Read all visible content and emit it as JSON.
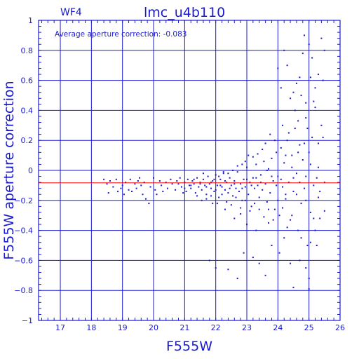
{
  "chart_data": {
    "type": "scatter",
    "corner_label": "WF4",
    "title": "lmc_u4b110",
    "annotation": "Average aperture correction: -0.083",
    "xlabel": "F555W",
    "ylabel": "F555W aperture correction",
    "xlim": [
      16.3,
      26
    ],
    "ylim": [
      -1,
      1
    ],
    "xticks": [
      17,
      18,
      19,
      20,
      21,
      22,
      23,
      24,
      25,
      26
    ],
    "yticks": [
      -1,
      -0.8,
      -0.6,
      -0.4,
      -0.2,
      0,
      0.2,
      0.4,
      0.6,
      0.8,
      1
    ],
    "xtick_labels": [
      "17",
      "18",
      "19",
      "20",
      "21",
      "22",
      "23",
      "24",
      "25",
      "26"
    ],
    "ytick_labels": [
      "−1",
      "−0.8",
      "−0.6",
      "−0.4",
      "−0.2",
      "0",
      "0.2",
      "0.4",
      "0.6",
      "0.8",
      "1"
    ],
    "grid": true,
    "reference_line": {
      "y": -0.083,
      "color": "#ff0000"
    },
    "colors": {
      "axis": "#1a1ad0",
      "points": "#1a1ad0",
      "line": "#ff0000",
      "background": "#ffffff"
    },
    "points": [
      [
        18.4,
        -0.06
      ],
      [
        18.5,
        -0.09
      ],
      [
        18.55,
        -0.15
      ],
      [
        18.6,
        -0.07
      ],
      [
        18.7,
        -0.11
      ],
      [
        18.8,
        -0.06
      ],
      [
        18.85,
        -0.14
      ],
      [
        19.0,
        -0.1
      ],
      [
        19.1,
        -0.08
      ],
      [
        19.2,
        -0.13
      ],
      [
        19.25,
        -0.06
      ],
      [
        19.4,
        -0.09
      ],
      [
        19.45,
        -0.12
      ],
      [
        19.5,
        -0.07
      ],
      [
        19.6,
        -0.1
      ],
      [
        19.65,
        -0.16
      ],
      [
        19.7,
        -0.08
      ],
      [
        19.75,
        -0.19
      ],
      [
        19.85,
        -0.22
      ],
      [
        19.9,
        -0.11
      ],
      [
        20.0,
        -0.05
      ],
      [
        20.05,
        -0.13
      ],
      [
        20.1,
        -0.16
      ],
      [
        20.2,
        -0.07
      ],
      [
        20.25,
        -0.1
      ],
      [
        20.4,
        -0.08
      ],
      [
        20.45,
        -0.12
      ],
      [
        20.55,
        -0.06
      ],
      [
        20.6,
        -0.09
      ],
      [
        20.7,
        -0.13
      ],
      [
        20.75,
        -0.07
      ],
      [
        20.85,
        -0.05
      ],
      [
        20.9,
        -0.11
      ],
      [
        21.0,
        -0.08
      ],
      [
        21.05,
        -0.14
      ],
      [
        21.1,
        -0.06
      ],
      [
        21.15,
        -0.1
      ],
      [
        21.2,
        -0.12
      ],
      [
        21.25,
        -0.07
      ],
      [
        21.3,
        -0.09
      ],
      [
        21.35,
        -0.15
      ],
      [
        21.4,
        -0.05
      ],
      [
        21.45,
        -0.11
      ],
      [
        21.5,
        -0.08
      ],
      [
        21.55,
        -0.13
      ],
      [
        21.6,
        -0.06
      ],
      [
        21.65,
        -0.1
      ],
      [
        21.7,
        -0.16
      ],
      [
        21.75,
        -0.04
      ],
      [
        21.8,
        -0.09
      ],
      [
        21.85,
        -0.12
      ],
      [
        21.9,
        -0.07
      ],
      [
        21.95,
        -0.14
      ],
      [
        22.0,
        -0.03
      ],
      [
        22.05,
        -0.1
      ],
      [
        22.1,
        -0.18
      ],
      [
        22.15,
        -0.06
      ],
      [
        22.2,
        -0.11
      ],
      [
        22.25,
        -0.02
      ],
      [
        22.3,
        -0.13
      ],
      [
        22.35,
        -0.08
      ],
      [
        22.4,
        -0.15
      ],
      [
        22.45,
        -0.05
      ],
      [
        22.5,
        -0.1
      ],
      [
        22.55,
        -0.17
      ],
      [
        22.6,
        -0.07
      ],
      [
        22.65,
        -0.12
      ],
      [
        22.7,
        -0.01
      ],
      [
        22.75,
        -0.14
      ],
      [
        22.8,
        -0.09
      ],
      [
        22.85,
        -0.2
      ],
      [
        22.9,
        -0.06
      ],
      [
        22.95,
        -0.11
      ],
      [
        23.0,
        0.02
      ],
      [
        23.05,
        -0.16
      ],
      [
        23.1,
        -0.08
      ],
      [
        23.15,
        -0.24
      ],
      [
        23.2,
        -0.05
      ],
      [
        23.25,
        -0.12
      ],
      [
        23.3,
        0.04
      ],
      [
        23.35,
        -0.1
      ],
      [
        23.4,
        -0.18
      ],
      [
        23.45,
        -0.03
      ],
      [
        23.5,
        -0.13
      ],
      [
        23.55,
        0.06
      ],
      [
        23.6,
        -0.09
      ],
      [
        23.65,
        -0.21
      ],
      [
        23.7,
        0.01
      ],
      [
        23.75,
        -0.15
      ],
      [
        23.8,
        0.08
      ],
      [
        23.85,
        -0.07
      ],
      [
        23.9,
        -0.26
      ],
      [
        23.95,
        0.12
      ],
      [
        24.0,
        -0.04
      ],
      [
        24.05,
        -0.3
      ],
      [
        24.1,
        0.15
      ],
      [
        24.15,
        -0.11
      ],
      [
        24.2,
        0.05
      ],
      [
        24.25,
        -0.19
      ],
      [
        24.3,
        0.2
      ],
      [
        24.35,
        -0.08
      ],
      [
        24.4,
        -0.33
      ],
      [
        24.45,
        0.1
      ],
      [
        24.5,
        -0.14
      ],
      [
        24.55,
        0.28
      ],
      [
        24.6,
        -0.02
      ],
      [
        24.65,
        -0.4
      ],
      [
        24.7,
        0.17
      ],
      [
        24.75,
        -0.22
      ],
      [
        24.8,
        0.07
      ],
      [
        24.85,
        -0.12
      ],
      [
        24.9,
        0.35
      ],
      [
        24.95,
        -0.5
      ],
      [
        25.0,
        0.12
      ],
      [
        25.05,
        -0.28
      ],
      [
        25.1,
        0.22
      ],
      [
        25.15,
        -0.1
      ],
      [
        25.2,
        0.42
      ],
      [
        25.3,
        -0.18
      ],
      [
        25.4,
        0.3
      ],
      [
        25.5,
        -0.08
      ],
      [
        24.1,
        0.55
      ],
      [
        24.3,
        0.7
      ],
      [
        24.5,
        0.52
      ],
      [
        24.7,
        0.62
      ],
      [
        24.8,
        0.78
      ],
      [
        25.0,
        0.84
      ],
      [
        24.2,
        0.8
      ],
      [
        24.6,
        0.58
      ],
      [
        25.1,
        0.75
      ],
      [
        25.3,
        0.64
      ],
      [
        24.9,
        0.45
      ],
      [
        24.4,
        0.48
      ],
      [
        25.4,
        0.88
      ],
      [
        25.5,
        0.8
      ],
      [
        24.0,
        0.68
      ],
      [
        24.85,
        0.9
      ],
      [
        25.2,
        0.55
      ],
      [
        24.05,
        -0.55
      ],
      [
        24.4,
        -0.62
      ],
      [
        24.7,
        -0.6
      ],
      [
        25.0,
        -0.72
      ],
      [
        23.8,
        -0.5
      ],
      [
        24.5,
        -0.78
      ],
      [
        25.0,
        -0.79
      ],
      [
        24.2,
        -0.45
      ],
      [
        23.4,
        -0.62
      ],
      [
        22.4,
        -0.66
      ],
      [
        23.2,
        -0.58
      ],
      [
        22.9,
        -0.55
      ],
      [
        21.8,
        -0.6
      ],
      [
        22.7,
        -0.72
      ],
      [
        23.6,
        -0.7
      ],
      [
        22.0,
        -0.65
      ],
      [
        23.0,
        -0.36
      ],
      [
        23.3,
        -0.4
      ],
      [
        22.6,
        -0.32
      ],
      [
        22.3,
        -0.26
      ],
      [
        22.8,
        -0.29
      ],
      [
        21.9,
        -0.22
      ],
      [
        23.7,
        -0.35
      ],
      [
        24.9,
        -0.65
      ],
      [
        25.2,
        -0.4
      ],
      [
        25.35,
        -0.32
      ],
      [
        25.5,
        -0.27
      ],
      [
        25.45,
        0.6
      ],
      [
        25.3,
        0.02
      ],
      [
        25.35,
        -0.14
      ],
      [
        25.25,
        -0.05
      ],
      [
        24.35,
        0.25
      ],
      [
        24.15,
        0.3
      ],
      [
        23.9,
        0.2
      ],
      [
        23.75,
        0.24
      ],
      [
        23.6,
        0.18
      ],
      [
        23.5,
        0.14
      ],
      [
        23.35,
        0.11
      ],
      [
        23.2,
        0.09
      ],
      [
        23.05,
        0.1
      ],
      [
        22.95,
        0.06
      ],
      [
        22.85,
        0.04
      ],
      [
        22.7,
        0.03
      ],
      [
        22.55,
        0.0
      ],
      [
        22.4,
        -0.02
      ],
      [
        22.25,
        -0.01
      ],
      [
        22.1,
        -0.04
      ],
      [
        21.95,
        -0.06
      ],
      [
        21.6,
        -0.02
      ],
      [
        21.4,
        -0.17
      ],
      [
        21.55,
        -0.2
      ],
      [
        21.7,
        -0.19
      ],
      [
        21.85,
        -0.17
      ],
      [
        22.05,
        -0.22
      ],
      [
        22.2,
        -0.16
      ],
      [
        22.35,
        -0.21
      ],
      [
        22.5,
        -0.23
      ],
      [
        22.65,
        -0.18
      ],
      [
        22.8,
        -0.25
      ],
      [
        22.95,
        -0.2
      ],
      [
        23.1,
        -0.27
      ],
      [
        23.25,
        -0.22
      ],
      [
        23.4,
        -0.26
      ],
      [
        23.55,
        -0.31
      ],
      [
        23.7,
        -0.26
      ],
      [
        23.85,
        -0.33
      ],
      [
        24.0,
        -0.2
      ],
      [
        24.15,
        -0.25
      ],
      [
        24.3,
        -0.38
      ],
      [
        24.45,
        -0.3
      ],
      [
        24.6,
        -0.16
      ],
      [
        24.75,
        -0.45
      ],
      [
        24.9,
        -0.2
      ],
      [
        25.05,
        -0.48
      ],
      [
        25.15,
        -0.32
      ],
      [
        25.25,
        -0.5
      ],
      [
        24.55,
        0.4
      ],
      [
        24.65,
        0.33
      ],
      [
        24.75,
        0.5
      ],
      [
        24.95,
        0.28
      ],
      [
        25.05,
        0.62
      ],
      [
        25.15,
        0.46
      ],
      [
        25.3,
        0.18
      ],
      [
        25.45,
        0.22
      ],
      [
        24.25,
        0.1
      ],
      [
        24.45,
        0.02
      ],
      [
        24.65,
        0.12
      ],
      [
        24.85,
        0.18
      ],
      [
        25.05,
        0.04
      ],
      [
        23.65,
        0.0
      ],
      [
        23.8,
        -0.04
      ],
      [
        23.95,
        -0.1
      ],
      [
        24.1,
        -0.06
      ],
      [
        24.25,
        -0.16
      ],
      [
        24.5,
        -0.05
      ],
      [
        24.7,
        -0.08
      ],
      [
        24.9,
        -0.04
      ],
      [
        23.45,
        -0.08
      ],
      [
        23.3,
        -0.05
      ],
      [
        23.15,
        -0.1
      ],
      [
        23.0,
        -0.06
      ],
      [
        22.85,
        -0.12
      ],
      [
        22.6,
        -0.09
      ],
      [
        22.45,
        -0.12
      ],
      [
        22.3,
        -0.07
      ],
      [
        22.15,
        -0.1
      ],
      [
        22.0,
        -0.13
      ],
      [
        21.85,
        -0.08
      ],
      [
        21.7,
        -0.11
      ],
      [
        21.5,
        -0.09
      ],
      [
        21.3,
        -0.06
      ],
      [
        21.2,
        -0.1
      ],
      [
        21.0,
        -0.12
      ],
      [
        20.8,
        -0.09
      ],
      [
        20.95,
        -0.15
      ],
      [
        20.3,
        -0.14
      ],
      [
        19.3,
        -0.14
      ],
      [
        19.55,
        -0.05
      ],
      [
        19.05,
        -0.16
      ],
      [
        18.95,
        -0.12
      ]
    ]
  }
}
